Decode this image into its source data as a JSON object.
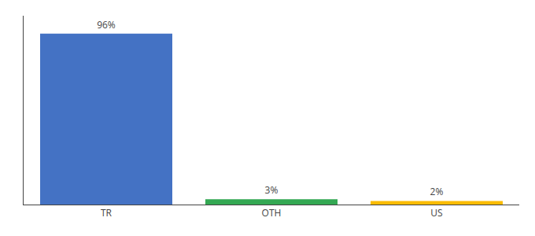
{
  "chart_data": {
    "type": "bar",
    "categories": [
      "TR",
      "OTH",
      "US"
    ],
    "values": [
      96,
      3,
      2
    ],
    "value_labels": [
      "96%",
      "3%",
      "2%"
    ],
    "colors": [
      "#4472c4",
      "#34a853",
      "#fbbc04"
    ],
    "data_labels": true,
    "ylim": [
      0,
      106
    ],
    "grid": false,
    "tick_labels": "x"
  }
}
